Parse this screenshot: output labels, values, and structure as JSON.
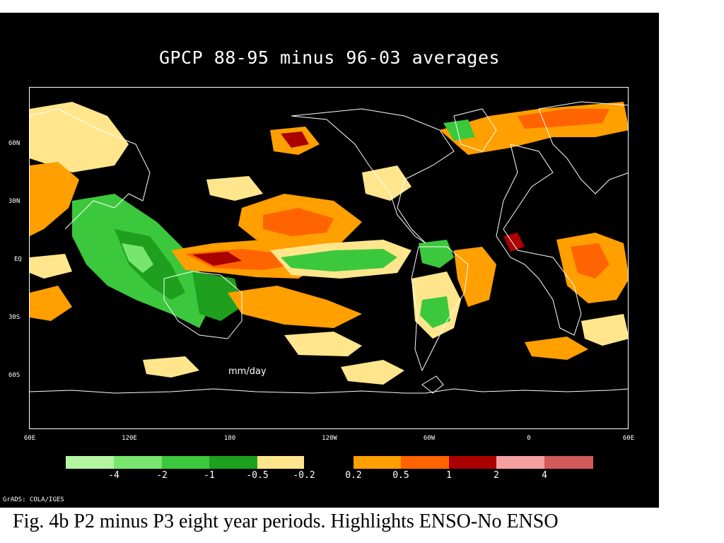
{
  "title": "GPCP 88-95 minus 96-03 averages",
  "units_label": "mm/day",
  "credit": "GrADS: COLA/IGES",
  "caption": "Fig. 4b  P2 minus P3 eight year periods. Highlights ENSO-No ENSO",
  "lat_ticks": [
    "60N",
    "30N",
    "EQ",
    "30S",
    "60S"
  ],
  "lon_ticks": [
    "60E",
    "120E",
    "180",
    "120W",
    "60W",
    "0",
    "60E"
  ],
  "colorbar": {
    "colors": [
      "#b4f5a0",
      "#78e66e",
      "#3cc83c",
      "#1ea01e",
      "#0f8c14",
      "#ffe68c",
      "#ff9f00",
      "#ff6400",
      "#aa0000",
      "#f5a0a0",
      "#d25a5a"
    ],
    "labels": [
      "-4",
      "-2",
      "-1",
      "-0.5",
      "-0.2",
      "0.2",
      "0.5",
      "1",
      "2",
      "4"
    ]
  },
  "palette": {
    "yellow": "#ffe68c",
    "orange": "#ff9f00",
    "dark_orange": "#ff6400",
    "red": "#aa0000",
    "light_green": "#78e66e",
    "green": "#3cc83c",
    "dark_green": "#1ea01e"
  }
}
